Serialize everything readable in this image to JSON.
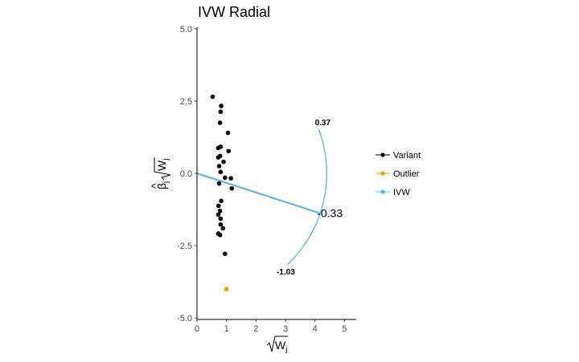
{
  "chart_data": {
    "type": "scatter",
    "title": "IVW Radial",
    "xlabel": "√W_j",
    "ylabel": "β̂_j √W_j",
    "xlim": [
      0,
      5.4
    ],
    "ylim": [
      -5.05,
      5.05
    ],
    "x_ticks": [
      "0",
      "1",
      "2",
      "3",
      "4",
      "5"
    ],
    "y_ticks": [
      "-5.0",
      "-2.5",
      "0.0",
      "2.5",
      "5.0"
    ],
    "grid": false,
    "legend_position": "right",
    "series": [
      {
        "name": "Variant",
        "color": "#000000",
        "points": [
          [
            0.53,
            2.65
          ],
          [
            0.82,
            2.33
          ],
          [
            0.8,
            2.13
          ],
          [
            0.78,
            1.75
          ],
          [
            1.05,
            1.4
          ],
          [
            0.8,
            0.92
          ],
          [
            0.72,
            0.88
          ],
          [
            1.07,
            0.77
          ],
          [
            0.78,
            0.6
          ],
          [
            0.72,
            0.55
          ],
          [
            0.9,
            0.4
          ],
          [
            0.75,
            0.25
          ],
          [
            0.8,
            0.05
          ],
          [
            0.95,
            -0.15
          ],
          [
            1.15,
            -0.17
          ],
          [
            0.75,
            -0.35
          ],
          [
            1.18,
            -0.52
          ],
          [
            0.82,
            -0.95
          ],
          [
            0.73,
            -1.12
          ],
          [
            0.78,
            -1.3
          ],
          [
            0.72,
            -1.43
          ],
          [
            0.8,
            -1.57
          ],
          [
            0.8,
            -1.77
          ],
          [
            0.88,
            -1.9
          ],
          [
            0.72,
            -2.08
          ],
          [
            0.78,
            -2.13
          ],
          [
            0.95,
            -2.78
          ]
        ]
      },
      {
        "name": "Outlier",
        "color": "#E69F00",
        "points": [
          [
            1.0,
            -4.0
          ]
        ]
      },
      {
        "name": "IVW",
        "color": "#56B4E9",
        "slope": -0.33
      }
    ],
    "arc_labels": {
      "upper": "0.37",
      "lower": "-1.03",
      "estimate": "-0.33"
    }
  }
}
